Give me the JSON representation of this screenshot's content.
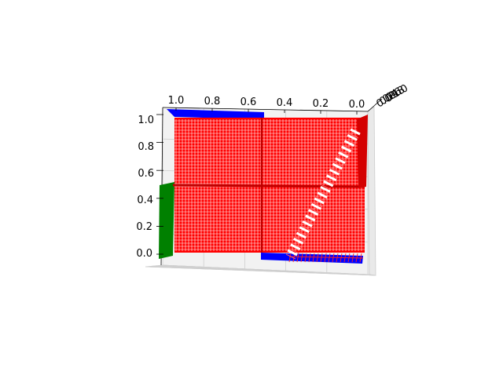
{
  "chart_data": {
    "type": "surface-3d",
    "title": "",
    "xlabel": "",
    "ylabel": "",
    "zlabel": "",
    "x_ticks": [
      "1.0",
      "0.8",
      "0.6",
      "0.4",
      "0.2",
      "0.0"
    ],
    "z_ticks": [
      "1.0",
      "0.8",
      "0.6",
      "0.4",
      "0.2",
      "0.0"
    ],
    "y_ticks": [
      "0.0",
      "0.2",
      "0.4",
      "0.6",
      "0.8",
      "1.0"
    ],
    "x_range": [
      0,
      1
    ],
    "y_range": [
      0,
      1
    ],
    "z_range": [
      0,
      1
    ],
    "grid": true,
    "planes": [
      {
        "name": "",
        "color": "#ff0000",
        "style": "wireframe",
        "orientation": "vertical"
      },
      {
        "name": "",
        "color": "#ff0000",
        "style": "wireframe",
        "orientation": "horizontal",
        "z": 0.5
      },
      {
        "name": "",
        "color": "#0000ff",
        "style": "filled",
        "orientation": "horizontal",
        "z": [
          0,
          1
        ]
      },
      {
        "name": "",
        "color": "#008000",
        "style": "filled",
        "orientation": "side",
        "x": 1
      }
    ]
  },
  "colors": {
    "pane": "#f2f2f2",
    "grid": "#cfcfcf",
    "axis": "#000000"
  }
}
